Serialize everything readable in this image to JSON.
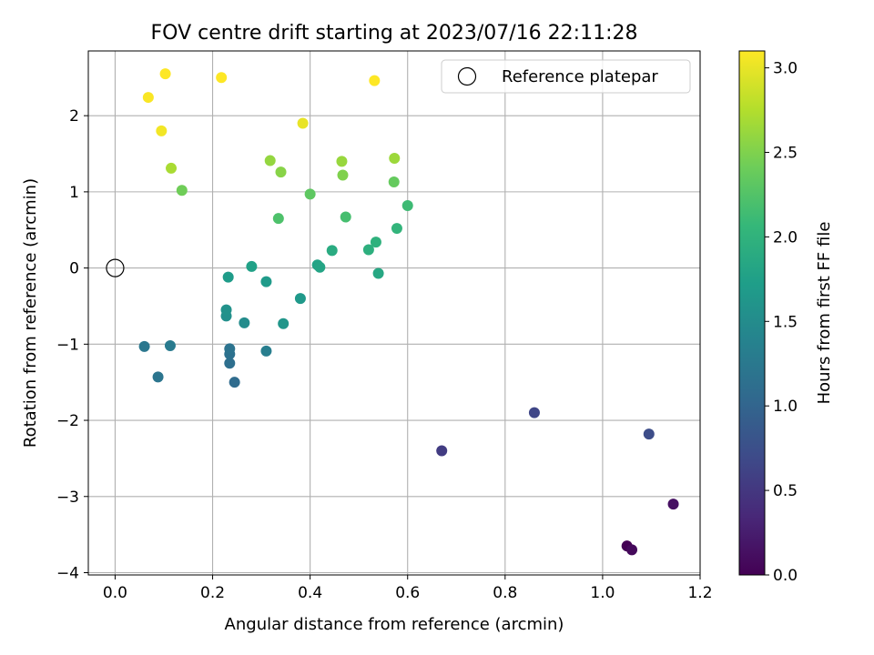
{
  "chart_data": {
    "type": "scatter",
    "title": "FOV centre drift starting at 2023/07/16 22:11:28",
    "xlabel": "Angular distance from reference (arcmin)",
    "ylabel": "Rotation from reference (arcmin)",
    "xlim": [
      -0.055,
      1.2
    ],
    "ylim": [
      -4.03,
      2.85
    ],
    "xticks": [
      0.0,
      0.2,
      0.4,
      0.6,
      0.8,
      1.0,
      1.2
    ],
    "xtick_labels": [
      "0.0",
      "0.2",
      "0.4",
      "0.6",
      "0.8",
      "1.0",
      "1.2"
    ],
    "yticks": [
      -4,
      -3,
      -2,
      -1,
      0,
      1,
      2
    ],
    "ytick_labels": [
      "−4",
      "−3",
      "−2",
      "−1",
      "0",
      "1",
      "2"
    ],
    "grid": true,
    "legend": {
      "placement": "top-right",
      "entries": [
        "Reference platepar"
      ]
    },
    "reference_point": {
      "x": 0.0,
      "y": 0.0
    },
    "colorbar": {
      "label": "Hours from first FF file",
      "range": [
        0.0,
        3.1
      ],
      "ticks": [
        0.0,
        0.5,
        1.0,
        1.5,
        2.0,
        2.5,
        3.0
      ],
      "tick_labels": [
        "0.0",
        "0.5",
        "1.0",
        "1.5",
        "2.0",
        "2.5",
        "3.0"
      ],
      "colormap": "viridis"
    },
    "points": [
      {
        "x": 1.05,
        "y": -3.65,
        "c": 0.0
      },
      {
        "x": 1.06,
        "y": -3.7,
        "c": 0.07
      },
      {
        "x": 1.145,
        "y": -3.1,
        "c": 0.13
      },
      {
        "x": 0.67,
        "y": -2.4,
        "c": 0.55
      },
      {
        "x": 0.86,
        "y": -1.9,
        "c": 0.65
      },
      {
        "x": 1.095,
        "y": -2.18,
        "c": 0.72
      },
      {
        "x": 0.245,
        "y": -1.5,
        "c": 1.08
      },
      {
        "x": 0.235,
        "y": -1.25,
        "c": 1.12
      },
      {
        "x": 0.235,
        "y": -1.13,
        "c": 1.15
      },
      {
        "x": 0.235,
        "y": -1.06,
        "c": 1.18
      },
      {
        "x": 0.088,
        "y": -1.43,
        "c": 1.2
      },
      {
        "x": 0.06,
        "y": -1.03,
        "c": 1.23
      },
      {
        "x": 0.113,
        "y": -1.02,
        "c": 1.27
      },
      {
        "x": 0.31,
        "y": -1.09,
        "c": 1.32
      },
      {
        "x": 0.265,
        "y": -0.72,
        "c": 1.5
      },
      {
        "x": 0.228,
        "y": -0.63,
        "c": 1.55
      },
      {
        "x": 0.228,
        "y": -0.55,
        "c": 1.58
      },
      {
        "x": 0.345,
        "y": -0.73,
        "c": 1.62
      },
      {
        "x": 0.38,
        "y": -0.4,
        "c": 1.66
      },
      {
        "x": 0.31,
        "y": -0.18,
        "c": 1.68
      },
      {
        "x": 0.232,
        "y": -0.12,
        "c": 1.7
      },
      {
        "x": 0.28,
        "y": 0.02,
        "c": 1.76
      },
      {
        "x": 0.415,
        "y": 0.04,
        "c": 1.79
      },
      {
        "x": 0.42,
        "y": 0.01,
        "c": 1.8
      },
      {
        "x": 0.54,
        "y": -0.07,
        "c": 1.85
      },
      {
        "x": 0.445,
        "y": 0.23,
        "c": 1.9
      },
      {
        "x": 0.52,
        "y": 0.24,
        "c": 1.95
      },
      {
        "x": 0.535,
        "y": 0.34,
        "c": 1.98
      },
      {
        "x": 0.578,
        "y": 0.52,
        "c": 2.03
      },
      {
        "x": 0.6,
        "y": 0.82,
        "c": 2.12
      },
      {
        "x": 0.473,
        "y": 0.67,
        "c": 2.17
      },
      {
        "x": 0.335,
        "y": 0.65,
        "c": 2.22
      },
      {
        "x": 0.4,
        "y": 0.97,
        "c": 2.32
      },
      {
        "x": 0.572,
        "y": 1.13,
        "c": 2.36
      },
      {
        "x": 0.137,
        "y": 1.02,
        "c": 2.42
      },
      {
        "x": 0.467,
        "y": 1.22,
        "c": 2.5
      },
      {
        "x": 0.34,
        "y": 1.26,
        "c": 2.54
      },
      {
        "x": 0.318,
        "y": 1.41,
        "c": 2.6
      },
      {
        "x": 0.465,
        "y": 1.4,
        "c": 2.62
      },
      {
        "x": 0.573,
        "y": 1.44,
        "c": 2.64
      },
      {
        "x": 0.115,
        "y": 1.31,
        "c": 2.7
      },
      {
        "x": 0.385,
        "y": 1.9,
        "c": 3.0
      },
      {
        "x": 0.095,
        "y": 1.8,
        "c": 3.05
      },
      {
        "x": 0.068,
        "y": 2.24,
        "c": 3.08
      },
      {
        "x": 0.103,
        "y": 2.55,
        "c": 3.1
      },
      {
        "x": 0.218,
        "y": 2.5,
        "c": 3.1
      },
      {
        "x": 0.532,
        "y": 2.46,
        "c": 3.1
      }
    ]
  }
}
